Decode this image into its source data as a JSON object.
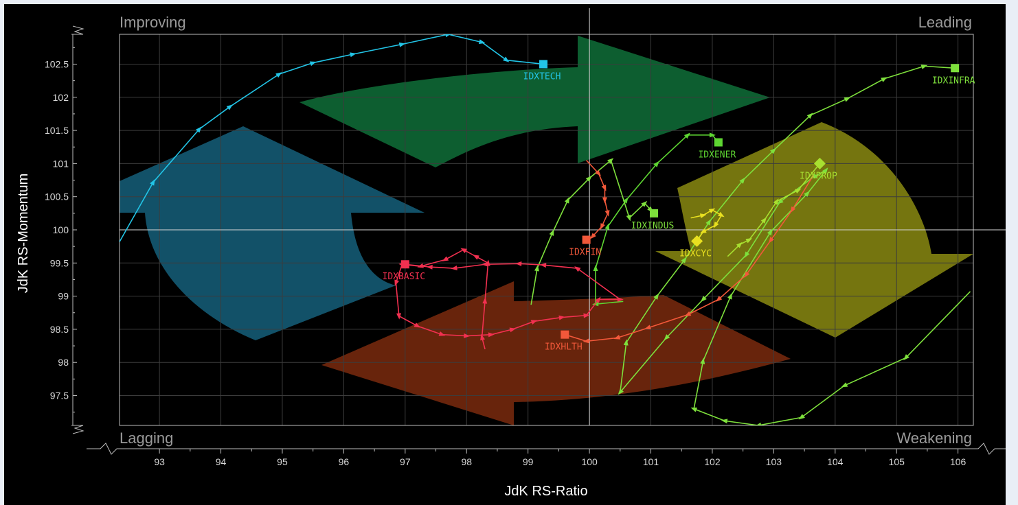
{
  "chart_data": {
    "type": "scatter",
    "xlabel": "JdK RS-Ratio",
    "ylabel": "JdK RS-Momentum",
    "xlim": [
      92.35,
      106.25
    ],
    "ylim": [
      97.05,
      102.95
    ],
    "x_ticks": [
      93,
      94,
      95,
      96,
      97,
      98,
      99,
      100,
      101,
      102,
      103,
      104,
      105,
      106
    ],
    "y_ticks": [
      97.5,
      98,
      98.5,
      99,
      99.5,
      100,
      100.5,
      101,
      101.5,
      102,
      102.5
    ],
    "x_tick_labels": [
      "93",
      "94",
      "95",
      "96",
      "97",
      "98",
      "99",
      "100",
      "101",
      "102",
      "103",
      "104",
      "105",
      "106"
    ],
    "y_tick_labels": [
      "97.5",
      "98",
      "98.5",
      "99",
      "99.5",
      "100",
      "100.5",
      "101",
      "101.5",
      "102",
      "102.5"
    ],
    "center": [
      100,
      100
    ],
    "grid": true,
    "quadrants": [
      {
        "label": "Improving",
        "position": "top-left",
        "arrow_color": "#0f6f38"
      },
      {
        "label": "Leading",
        "position": "top-right",
        "arrow_color": "#8a8a12"
      },
      {
        "label": "Lagging",
        "position": "bottom-left",
        "arrow_color": "#155f7a"
      },
      {
        "label": "Weakening",
        "position": "bottom-right",
        "arrow_color": "#7a2a0e"
      }
    ],
    "series": [
      {
        "name": "IDXTECH",
        "color": "#22c4e6",
        "points": [
          [
            92.35,
            99.82
          ],
          [
            92.9,
            100.72
          ],
          [
            93.65,
            101.52
          ],
          [
            94.15,
            101.86
          ],
          [
            94.95,
            102.35
          ],
          [
            95.5,
            102.52
          ],
          [
            96.15,
            102.65
          ],
          [
            96.95,
            102.8
          ],
          [
            97.7,
            102.95
          ],
          [
            98.25,
            102.83
          ],
          [
            98.65,
            102.56
          ],
          [
            99.25,
            102.5
          ]
        ]
      },
      {
        "name": "IDXINFRA",
        "color": "#7ee03c",
        "points": [
          [
            106.2,
            99.07
          ],
          [
            105.15,
            98.07
          ],
          [
            104.15,
            97.65
          ],
          [
            103.45,
            97.17
          ],
          [
            102.75,
            97.05
          ],
          [
            102.2,
            97.12
          ],
          [
            101.7,
            97.3
          ],
          [
            101.85,
            98.02
          ],
          [
            102.3,
            99.0
          ],
          [
            102.95,
            99.97
          ],
          [
            103.55,
            100.55
          ],
          [
            103.85,
            100.9
          ],
          [
            103.65,
            100.8
          ],
          [
            103.1,
            100.42
          ],
          [
            102.55,
            99.62
          ],
          [
            101.85,
            98.95
          ],
          [
            101.25,
            98.37
          ],
          [
            100.5,
            97.55
          ],
          [
            100.6,
            98.3
          ],
          [
            101.1,
            99.0
          ],
          [
            101.55,
            99.55
          ],
          [
            101.95,
            100.12
          ],
          [
            102.5,
            100.75
          ],
          [
            103.0,
            101.2
          ],
          [
            103.6,
            101.73
          ],
          [
            104.2,
            101.98
          ],
          [
            104.8,
            102.28
          ],
          [
            105.45,
            102.47
          ],
          [
            105.95,
            102.44
          ]
        ]
      },
      {
        "name": "IDXENER",
        "color": "#5ed632",
        "points": [
          [
            100.55,
            98.92
          ],
          [
            100.1,
            98.88
          ],
          [
            100.1,
            99.42
          ],
          [
            100.3,
            100.05
          ],
          [
            100.6,
            100.45
          ],
          [
            101.1,
            101.0
          ],
          [
            101.6,
            101.43
          ],
          [
            102.0,
            101.43
          ],
          [
            102.1,
            101.32
          ]
        ]
      },
      {
        "name": "IDXINDUS",
        "color": "#7ee03c",
        "points": [
          [
            99.05,
            98.87
          ],
          [
            99.15,
            99.42
          ],
          [
            99.4,
            99.96
          ],
          [
            99.65,
            100.45
          ],
          [
            100.0,
            100.78
          ],
          [
            100.35,
            101.05
          ],
          [
            100.65,
            100.18
          ],
          [
            100.9,
            100.4
          ],
          [
            101.0,
            100.3
          ],
          [
            101.05,
            100.25
          ]
        ]
      },
      {
        "name": "IDXPROP",
        "color": "#a8e030",
        "points": [
          [
            102.25,
            99.6
          ],
          [
            102.45,
            99.78
          ],
          [
            102.6,
            99.85
          ],
          [
            102.85,
            100.15
          ],
          [
            103.05,
            100.43
          ],
          [
            103.4,
            100.6
          ],
          [
            103.75,
            101.0
          ]
        ]
      },
      {
        "name": "IDXCYC",
        "color": "#e8e020",
        "points": [
          [
            101.65,
            100.18
          ],
          [
            101.85,
            100.22
          ],
          [
            102.0,
            100.3
          ],
          [
            102.15,
            100.22
          ],
          [
            102.05,
            100.07
          ],
          [
            101.85,
            99.97
          ],
          [
            101.75,
            99.83
          ]
        ]
      },
      {
        "name": "IDXFIN",
        "color": "#f2583a",
        "points": [
          [
            99.95,
            101.05
          ],
          [
            100.15,
            100.85
          ],
          [
            100.25,
            100.63
          ],
          [
            100.25,
            100.45
          ],
          [
            100.3,
            100.25
          ],
          [
            100.2,
            100.05
          ],
          [
            100.05,
            99.9
          ],
          [
            99.95,
            99.85
          ]
        ]
      },
      {
        "name": "IDXHLTH",
        "color": "#f2583a",
        "points": [
          [
            103.65,
            100.83
          ],
          [
            103.3,
            100.3
          ],
          [
            102.95,
            99.84
          ],
          [
            102.55,
            99.32
          ],
          [
            102.1,
            98.95
          ],
          [
            101.6,
            98.72
          ],
          [
            100.95,
            98.52
          ],
          [
            100.45,
            98.37
          ],
          [
            99.95,
            98.32
          ],
          [
            99.6,
            98.42
          ]
        ]
      },
      {
        "name": "IDXBASIC",
        "color": "#f23050",
        "points": [
          [
            98.3,
            98.2
          ],
          [
            98.25,
            98.38
          ],
          [
            98.3,
            98.93
          ],
          [
            98.35,
            99.5
          ],
          [
            98.15,
            99.6
          ],
          [
            97.95,
            99.7
          ],
          [
            97.65,
            99.55
          ],
          [
            97.25,
            99.45
          ],
          [
            96.95,
            99.48
          ],
          [
            96.85,
            99.2
          ],
          [
            96.9,
            98.7
          ],
          [
            97.2,
            98.55
          ],
          [
            97.6,
            98.42
          ],
          [
            98.0,
            98.4
          ],
          [
            98.4,
            98.42
          ],
          [
            98.75,
            98.5
          ],
          [
            99.1,
            98.62
          ],
          [
            99.55,
            98.68
          ],
          [
            99.95,
            98.71
          ],
          [
            100.15,
            98.95
          ],
          [
            100.5,
            98.95
          ],
          [
            99.8,
            99.42
          ],
          [
            99.25,
            99.47
          ],
          [
            98.85,
            99.49
          ],
          [
            98.3,
            99.48
          ],
          [
            97.8,
            99.42
          ],
          [
            97.4,
            99.44
          ],
          [
            97.0,
            99.48
          ]
        ]
      }
    ]
  }
}
